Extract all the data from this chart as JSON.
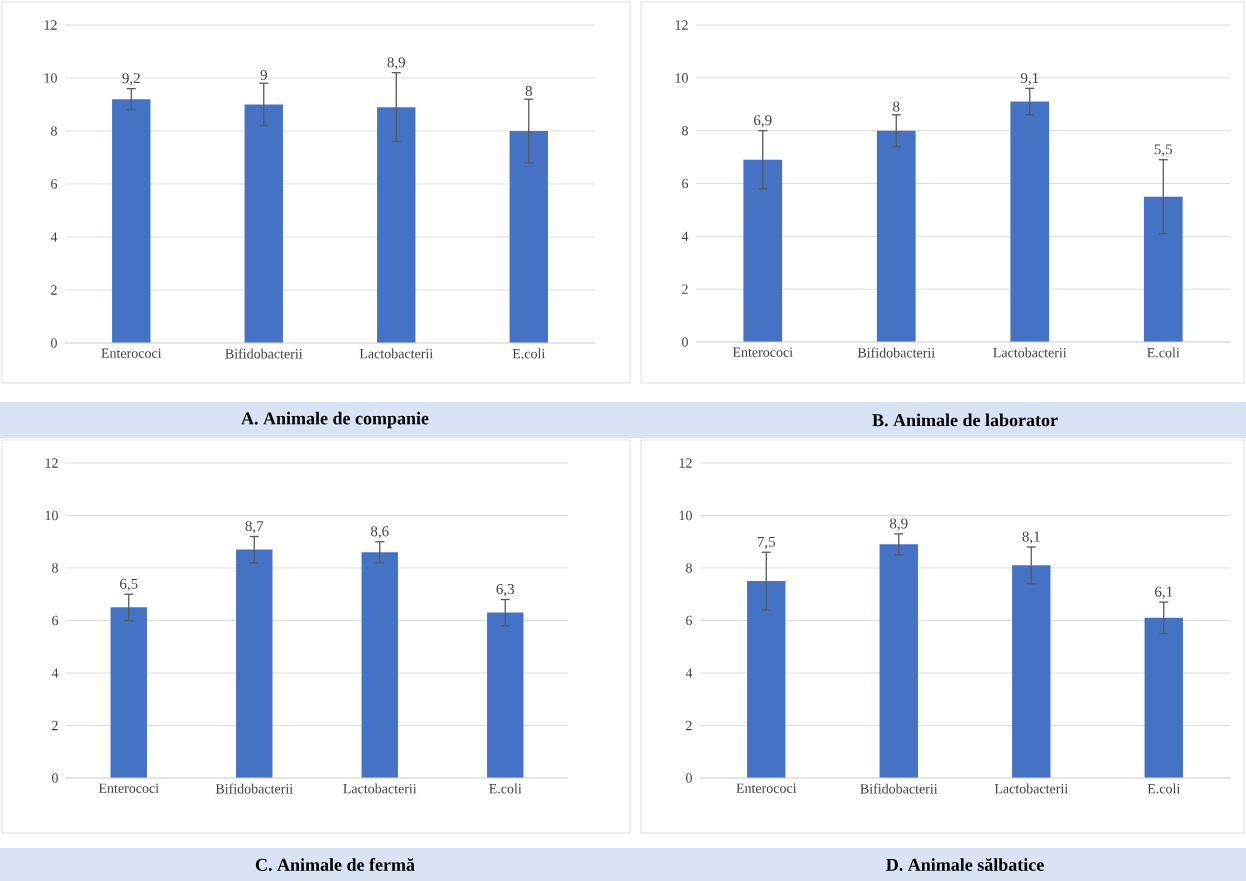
{
  "chart_data": [
    {
      "type": "bar",
      "title": "A.   Animale de companie",
      "categories": [
        "Enterococi",
        "Bifidobacterii",
        "Lactobacterii",
        "E.coli"
      ],
      "values": [
        9.2,
        9,
        8.9,
        8
      ],
      "errors": [
        0.4,
        0.8,
        1.3,
        1.2
      ],
      "value_labels": [
        "9,2",
        "9",
        "8,9",
        "8"
      ],
      "color": "#4472c4",
      "ylim": [
        0,
        12
      ],
      "yticks": [
        0,
        2,
        4,
        6,
        8,
        10,
        12
      ],
      "grid": "y"
    },
    {
      "type": "bar",
      "title": "B.   Animale de laborator",
      "categories": [
        "Enterococi",
        "Bifidobacterii",
        "Lactobacterii",
        "E.coli"
      ],
      "values": [
        6.9,
        8,
        9.1,
        5.5
      ],
      "errors": [
        1.1,
        0.6,
        0.5,
        1.4
      ],
      "value_labels": [
        "6,9",
        "8",
        "9,1",
        "5,5"
      ],
      "color": "#4472c4",
      "ylim": [
        0,
        12
      ],
      "yticks": [
        0,
        2,
        4,
        6,
        8,
        10,
        12
      ],
      "grid": "y"
    },
    {
      "type": "bar",
      "title": "C.   Animale de fermă",
      "categories": [
        "Enterococi",
        "Bifidobacterii",
        "Lactobacterii",
        "E.coli"
      ],
      "values": [
        6.5,
        8.7,
        8.6,
        6.3
      ],
      "errors": [
        0.5,
        0.5,
        0.4,
        0.5
      ],
      "value_labels": [
        "6,5",
        "8,7",
        "8,6",
        "6,3"
      ],
      "color": "#4472c4",
      "ylim": [
        0,
        12
      ],
      "yticks": [
        0,
        2,
        4,
        6,
        8,
        10,
        12
      ],
      "grid": "y"
    },
    {
      "type": "bar",
      "title": "D.   Animale sălbatice",
      "categories": [
        "Enterococi",
        "Bifidobacterii",
        "Lactobacterii",
        "E.coli"
      ],
      "values": [
        7.5,
        8.9,
        8.1,
        6.1
      ],
      "errors": [
        1.1,
        0.4,
        0.7,
        0.6
      ],
      "value_labels": [
        "7,5",
        "8,9",
        "8,1",
        "6,1"
      ],
      "color": "#4472c4",
      "ylim": [
        0,
        12
      ],
      "yticks": [
        0,
        2,
        4,
        6,
        8,
        10,
        12
      ],
      "grid": "y"
    }
  ]
}
